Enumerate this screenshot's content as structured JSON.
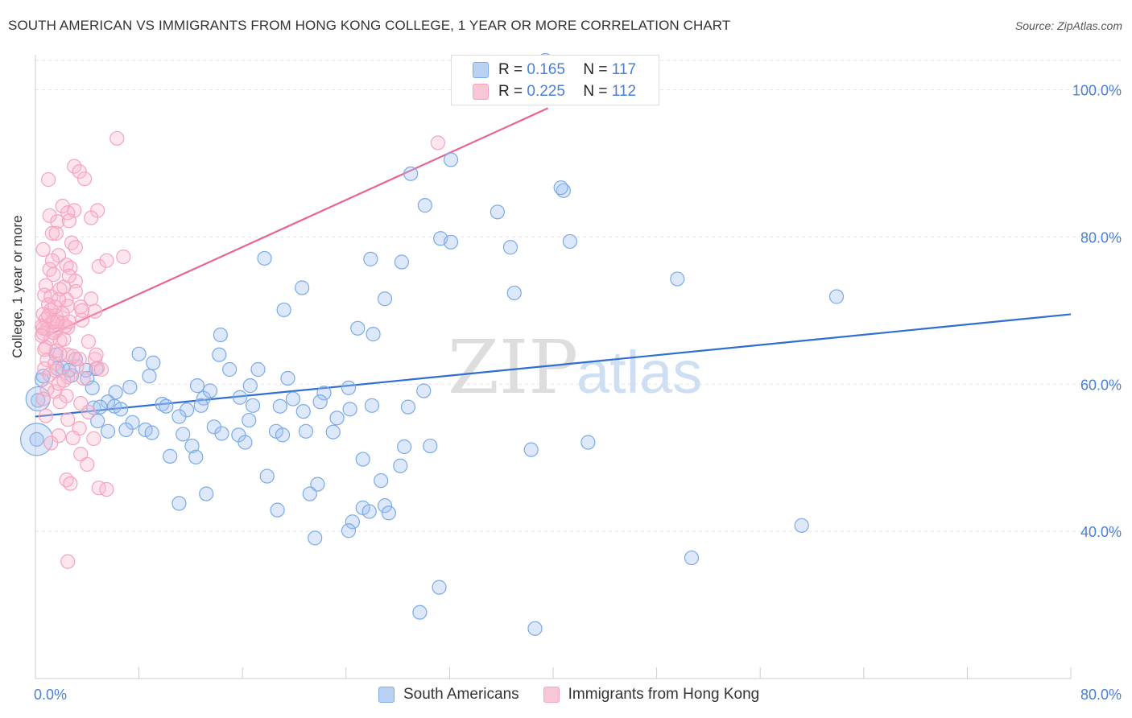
{
  "title": "SOUTH AMERICAN VS IMMIGRANTS FROM HONG KONG COLLEGE, 1 YEAR OR MORE CORRELATION CHART",
  "source": "Source: ZipAtlas.com",
  "watermark": {
    "zip": "ZIP",
    "atlas": "atlas"
  },
  "legend": {
    "r_label": "R =",
    "n_label": "N =",
    "series": [
      {
        "r": "0.165",
        "n": "117"
      },
      {
        "r": "0.225",
        "n": "112"
      }
    ]
  },
  "bottom_legend": [
    "South Americans",
    "Immigrants from Hong Kong"
  ],
  "chart_data": {
    "type": "scatter",
    "title": "SOUTH AMERICAN VS IMMIGRANTS FROM HONG KONG COLLEGE, 1 YEAR OR MORE CORRELATION CHART",
    "xlabel": "",
    "ylabel": "College, 1 year or more",
    "xlim": [
      0,
      80
    ],
    "ylim": [
      20,
      104
    ],
    "x_tick_labels": [
      "0.0%",
      "80.0%"
    ],
    "y_ticks": [
      40,
      60,
      80,
      100
    ],
    "y_tick_labels": [
      "40.0%",
      "60.0%",
      "80.0%",
      "100.0%"
    ],
    "grid": true,
    "series": [
      {
        "name": "South Americans",
        "color": "#7aaae8",
        "trend": {
          "x": [
            0,
            80
          ],
          "y": [
            55.6,
            69.5
          ],
          "color": "#2f6fd0"
        },
        "points": [
          [
            39.4,
            104.0
          ],
          [
            29.0,
            88.6
          ],
          [
            32.1,
            90.5
          ],
          [
            40.8,
            86.3
          ],
          [
            40.6,
            86.7
          ],
          [
            30.1,
            84.3
          ],
          [
            35.7,
            83.4
          ],
          [
            31.3,
            79.8
          ],
          [
            32.1,
            79.3
          ],
          [
            36.7,
            78.6
          ],
          [
            41.3,
            79.4
          ],
          [
            17.7,
            77.1
          ],
          [
            25.9,
            77.0
          ],
          [
            28.3,
            76.6
          ],
          [
            49.6,
            74.3
          ],
          [
            20.6,
            73.1
          ],
          [
            37.0,
            72.4
          ],
          [
            61.9,
            71.9
          ],
          [
            27.0,
            71.6
          ],
          [
            19.2,
            70.1
          ],
          [
            24.9,
            67.6
          ],
          [
            26.1,
            66.8
          ],
          [
            14.3,
            66.7
          ],
          [
            14.2,
            64.0
          ],
          [
            8.0,
            64.1
          ],
          [
            1.6,
            64.0
          ],
          [
            3.1,
            63.4
          ],
          [
            9.1,
            62.9
          ],
          [
            1.7,
            62.1
          ],
          [
            2.1,
            62.2
          ],
          [
            4.7,
            62.1
          ],
          [
            15.0,
            62.0
          ],
          [
            17.2,
            62.0
          ],
          [
            8.8,
            61.1
          ],
          [
            2.8,
            61.2
          ],
          [
            4.0,
            60.8
          ],
          [
            19.5,
            60.8
          ],
          [
            0.5,
            60.6
          ],
          [
            12.5,
            59.8
          ],
          [
            4.4,
            59.5
          ],
          [
            7.3,
            59.6
          ],
          [
            16.6,
            59.8
          ],
          [
            24.2,
            59.5
          ],
          [
            30.0,
            59.1
          ],
          [
            22.3,
            58.8
          ],
          [
            6.2,
            58.9
          ],
          [
            15.8,
            58.2
          ],
          [
            13.0,
            58.1
          ],
          [
            19.9,
            58.0
          ],
          [
            22.0,
            57.6
          ],
          [
            5.6,
            57.6
          ],
          [
            6.1,
            57.0
          ],
          [
            9.8,
            57.3
          ],
          [
            10.1,
            57.0
          ],
          [
            12.8,
            57.1
          ],
          [
            16.8,
            57.1
          ],
          [
            24.3,
            56.6
          ],
          [
            26.0,
            57.1
          ],
          [
            28.8,
            56.9
          ],
          [
            4.5,
            56.8
          ],
          [
            6.6,
            56.6
          ],
          [
            11.7,
            56.5
          ],
          [
            20.7,
            56.3
          ],
          [
            23.3,
            55.4
          ],
          [
            11.1,
            55.6
          ],
          [
            7.5,
            54.8
          ],
          [
            16.5,
            55.1
          ],
          [
            4.8,
            55.0
          ],
          [
            7.0,
            53.8
          ],
          [
            13.8,
            54.2
          ],
          [
            5.6,
            53.6
          ],
          [
            8.5,
            53.8
          ],
          [
            9.0,
            53.4
          ],
          [
            11.4,
            53.2
          ],
          [
            14.4,
            53.3
          ],
          [
            15.7,
            53.1
          ],
          [
            18.6,
            53.6
          ],
          [
            19.1,
            53.1
          ],
          [
            20.9,
            53.6
          ],
          [
            23.0,
            53.5
          ],
          [
            16.2,
            52.1
          ],
          [
            12.1,
            51.6
          ],
          [
            30.5,
            51.6
          ],
          [
            42.7,
            52.1
          ],
          [
            28.5,
            51.5
          ],
          [
            38.3,
            51.1
          ],
          [
            10.4,
            50.2
          ],
          [
            12.4,
            50.1
          ],
          [
            25.3,
            49.8
          ],
          [
            28.2,
            48.9
          ],
          [
            17.9,
            47.5
          ],
          [
            26.7,
            46.9
          ],
          [
            21.8,
            46.4
          ],
          [
            13.2,
            45.1
          ],
          [
            21.2,
            45.1
          ],
          [
            11.1,
            43.8
          ],
          [
            25.3,
            43.2
          ],
          [
            27.0,
            43.5
          ],
          [
            18.7,
            42.9
          ],
          [
            25.8,
            42.7
          ],
          [
            27.3,
            42.5
          ],
          [
            24.5,
            41.3
          ],
          [
            59.2,
            40.8
          ],
          [
            24.2,
            40.1
          ],
          [
            21.6,
            39.1
          ],
          [
            50.7,
            36.4
          ],
          [
            31.2,
            32.4
          ],
          [
            29.7,
            29.0
          ],
          [
            38.6,
            26.8
          ],
          [
            0.2,
            57.8
          ],
          [
            0.1,
            52.5
          ],
          [
            0.6,
            61.1
          ],
          [
            2.6,
            61.9
          ],
          [
            3.9,
            61.9
          ],
          [
            13.5,
            59.1
          ],
          [
            18.9,
            57.0
          ],
          [
            5.0,
            56.9
          ]
        ]
      },
      {
        "name": "Immigrants from Hong Kong",
        "color": "#f5a3bf",
        "trend": {
          "x": [
            0.8,
            39.6
          ],
          "y": [
            66.5,
            97.5
          ],
          "color": "#e8658f"
        },
        "points": [
          [
            6.3,
            93.4
          ],
          [
            31.1,
            92.8
          ],
          [
            3.0,
            89.6
          ],
          [
            3.4,
            88.9
          ],
          [
            1.0,
            87.8
          ],
          [
            3.8,
            87.9
          ],
          [
            2.1,
            84.2
          ],
          [
            3.0,
            83.6
          ],
          [
            4.8,
            83.6
          ],
          [
            2.5,
            83.3
          ],
          [
            1.1,
            82.9
          ],
          [
            4.3,
            82.6
          ],
          [
            1.7,
            82.1
          ],
          [
            2.6,
            82.2
          ],
          [
            1.3,
            80.5
          ],
          [
            1.6,
            80.5
          ],
          [
            2.8,
            79.2
          ],
          [
            0.6,
            78.3
          ],
          [
            3.1,
            78.6
          ],
          [
            1.8,
            77.5
          ],
          [
            6.8,
            77.3
          ],
          [
            1.3,
            76.8
          ],
          [
            2.4,
            76.2
          ],
          [
            4.9,
            76.0
          ],
          [
            5.5,
            76.8
          ],
          [
            1.1,
            75.6
          ],
          [
            2.7,
            75.8
          ],
          [
            1.4,
            74.9
          ],
          [
            3.1,
            74.0
          ],
          [
            0.8,
            73.4
          ],
          [
            1.9,
            72.9
          ],
          [
            3.1,
            72.6
          ],
          [
            0.7,
            72.1
          ],
          [
            1.2,
            71.9
          ],
          [
            2.4,
            71.5
          ],
          [
            4.3,
            71.6
          ],
          [
            1.0,
            70.8
          ],
          [
            2.5,
            70.6
          ],
          [
            1.2,
            70.1
          ],
          [
            3.5,
            70.5
          ],
          [
            0.6,
            69.5
          ],
          [
            1.6,
            69.3
          ],
          [
            2.1,
            69.6
          ],
          [
            4.6,
            69.9
          ],
          [
            0.8,
            68.8
          ],
          [
            1.3,
            68.5
          ],
          [
            2.1,
            68.3
          ],
          [
            3.6,
            68.7
          ],
          [
            0.5,
            67.9
          ],
          [
            0.9,
            67.5
          ],
          [
            1.6,
            67.2
          ],
          [
            2.5,
            67.7
          ],
          [
            0.6,
            66.9
          ],
          [
            1.2,
            66.2
          ],
          [
            1.9,
            65.9
          ],
          [
            4.1,
            65.8
          ],
          [
            0.8,
            65.0
          ],
          [
            1.6,
            64.5
          ],
          [
            2.5,
            64.0
          ],
          [
            3.4,
            63.4
          ],
          [
            0.9,
            63.3
          ],
          [
            4.6,
            63.4
          ],
          [
            1.5,
            62.8
          ],
          [
            3.2,
            62.4
          ],
          [
            0.7,
            62.1
          ],
          [
            1.1,
            61.3
          ],
          [
            2.5,
            61.0
          ],
          [
            4.8,
            62.2
          ],
          [
            0.9,
            59.3
          ],
          [
            1.5,
            59.0
          ],
          [
            2.4,
            58.4
          ],
          [
            0.6,
            58.0
          ],
          [
            1.9,
            57.6
          ],
          [
            3.5,
            57.4
          ],
          [
            4.1,
            56.2
          ],
          [
            0.8,
            55.7
          ],
          [
            2.5,
            55.2
          ],
          [
            3.4,
            54.0
          ],
          [
            1.8,
            53.0
          ],
          [
            4.5,
            52.6
          ],
          [
            2.9,
            52.7
          ],
          [
            1.2,
            52.0
          ],
          [
            3.5,
            50.5
          ],
          [
            4.0,
            49.1
          ],
          [
            2.4,
            47.0
          ],
          [
            2.7,
            46.5
          ],
          [
            4.9,
            45.9
          ],
          [
            5.5,
            45.7
          ],
          [
            2.5,
            35.9
          ],
          [
            1.4,
            67.0
          ],
          [
            1.4,
            68.4
          ],
          [
            0.6,
            67.6
          ],
          [
            2.2,
            66.1
          ],
          [
            2.3,
            67.9
          ],
          [
            1.0,
            69.3
          ],
          [
            1.5,
            70.5
          ],
          [
            1.7,
            68.5
          ],
          [
            0.5,
            66.6
          ],
          [
            2.9,
            63.8
          ],
          [
            1.6,
            61.8
          ],
          [
            1.8,
            71.5
          ],
          [
            2.2,
            73.2
          ],
          [
            2.6,
            74.7
          ],
          [
            3.6,
            70.0
          ],
          [
            4.7,
            64.0
          ],
          [
            0.7,
            64.7
          ],
          [
            1.8,
            60.1
          ],
          [
            3.7,
            60.8
          ],
          [
            5.1,
            62.0
          ],
          [
            2.2,
            60.5
          ],
          [
            1.9,
            64.1
          ],
          [
            2.6,
            68.5
          ]
        ]
      }
    ]
  }
}
